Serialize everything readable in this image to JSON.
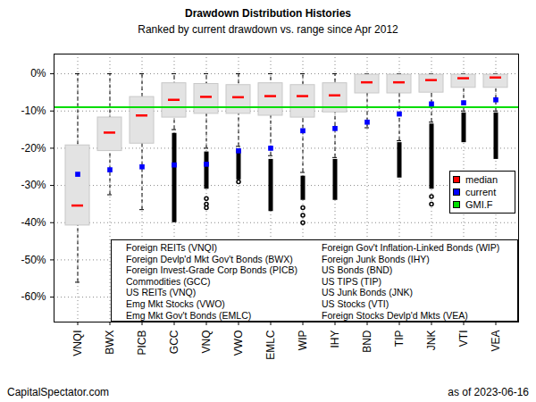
{
  "chart_data": {
    "type": "box",
    "title": "Drawdown Distribution Histories",
    "subtitle": "Ranked by current drawdown vs. range since Apr 2012",
    "source": "CapitalSpectator.com",
    "note": "as of  2023-06-16",
    "categories": [
      "VNQI",
      "BWX",
      "PICB",
      "GCC",
      "VNQ",
      "VWO",
      "EMLC",
      "WIP",
      "IHY",
      "BND",
      "TIP",
      "JNK",
      "VTI",
      "VEA"
    ],
    "names": [
      "Foreign REITs (VNQI)",
      "Foreign Devlp'd Mkt Gov't Bonds (BWX)",
      "Foreign Invest-Grade Corp Bonds (PICB)",
      "Commodities (GCC)",
      "US REITs (VNQ)",
      "Emg Mkt Stocks (VWO)",
      "Emg Mkt Gov't Bonds (EMLC)",
      "Foreign Gov't Inflation-Linked Bonds (WIP)",
      "Foreign Junk Bonds (IHY)",
      "US Bonds (BND)",
      "US TIPS (TIP)",
      "US Junk Bonds (JNK)",
      "US Stocks (VTI)",
      "Foreign Stocks Devlp'd Mkts (VEA)"
    ],
    "whisker_high": [
      0,
      0,
      0,
      0,
      0,
      0,
      0,
      0,
      0,
      0,
      0,
      0,
      0,
      0
    ],
    "box_high": [
      -19,
      -11.5,
      -6,
      -2.3,
      -2.5,
      -2.8,
      -2.3,
      -2.8,
      -2.3,
      0,
      0,
      0,
      0,
      0
    ],
    "box_low": [
      -41,
      -21,
      -19,
      -12,
      -11,
      -11,
      -11.5,
      -12,
      -10.6,
      -5.5,
      -5.5,
      -5.3,
      -4,
      -4
    ],
    "whisker_low": [
      -56,
      -32.5,
      -36.5,
      -15,
      -20,
      -19.5,
      -22,
      -26.5,
      -22.5,
      -14.5,
      -18,
      -13,
      -10,
      -10
    ],
    "outlier_ranges": [
      null,
      null,
      null,
      [
        -16,
        -40
      ],
      [
        -21,
        -31
      ],
      [
        -20.5,
        -28.5
      ],
      [
        -23,
        -37
      ],
      [
        -27.5,
        -34
      ],
      [
        -23,
        -34
      ],
      null,
      [
        -18.5,
        -28
      ],
      [
        -13.5,
        -31
      ],
      [
        -10.5,
        -18.5
      ],
      [
        -10.5,
        -23
      ]
    ],
    "outliers": [
      [],
      [],
      [],
      [],
      [
        -33.5,
        -35,
        -36
      ],
      [
        -29
      ],
      [],
      [
        -36,
        -38,
        -40
      ],
      [],
      [],
      [],
      [
        -33,
        -35
      ],
      [],
      []
    ],
    "series": [
      {
        "name": "median",
        "color": "#ff0000",
        "type": "tick",
        "values": [
          -35.4,
          -15.8,
          -11.2,
          -7,
          -6.2,
          -6.3,
          -6,
          -6,
          -5.8,
          -2.3,
          -2.3,
          -1.7,
          -1.2,
          -1
        ]
      },
      {
        "name": "current",
        "color": "#0000ff",
        "type": "scatter",
        "marker": "square",
        "values": [
          -27,
          -25.8,
          -25,
          -24.5,
          -24.3,
          -20.7,
          -20,
          -15.3,
          -14.7,
          -13,
          -10.8,
          -8.1,
          -7.8,
          -7
        ]
      },
      {
        "name": "GMI.F",
        "color": "#00dd00",
        "type": "line",
        "value": -9
      }
    ],
    "ylim": [
      -66.7,
      5.3
    ],
    "yticks": [
      {
        "value": 0,
        "label": "0%"
      },
      {
        "value": -10,
        "label": "-10%"
      },
      {
        "value": -20,
        "label": "-20%"
      },
      {
        "value": -30,
        "label": "-30%"
      },
      {
        "value": -40,
        "label": "-40%"
      },
      {
        "value": -50,
        "label": "-50%"
      },
      {
        "value": -60,
        "label": "-60%"
      }
    ],
    "grid": true,
    "legend": "right"
  }
}
